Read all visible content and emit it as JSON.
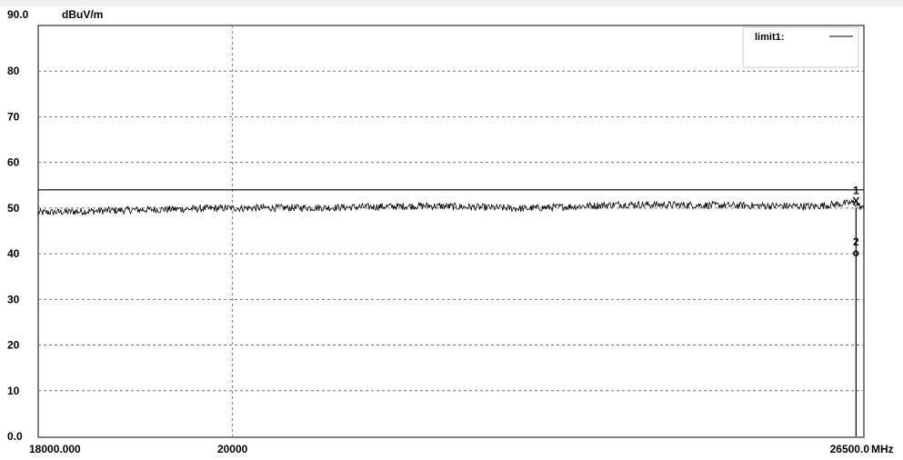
{
  "chart_data": {
    "type": "line",
    "y_unit": "dBuV/m",
    "x_unit": "MHz",
    "ylim": [
      0,
      90
    ],
    "xlim": [
      18000,
      26500
    ],
    "y_top_label": "90.0",
    "y_ticks": [
      {
        "value": 80,
        "label": "80"
      },
      {
        "value": 70,
        "label": "70"
      },
      {
        "value": 60,
        "label": "60"
      },
      {
        "value": 50,
        "label": "50"
      },
      {
        "value": 40,
        "label": "40"
      },
      {
        "value": 30,
        "label": "30"
      },
      {
        "value": 20,
        "label": "20"
      },
      {
        "value": 10,
        "label": "10"
      },
      {
        "value": 0,
        "label": "0.0"
      }
    ],
    "x_ticks": [
      {
        "value": 18000,
        "label": "18000.000"
      },
      {
        "value": 20000,
        "label": "20000"
      },
      {
        "value": 26500,
        "label": "26500.0"
      }
    ],
    "grid": true,
    "legend": {
      "label": "limit1:",
      "position": "top-right"
    },
    "limit_line": {
      "name": "limit1",
      "value": 54
    },
    "series": [
      {
        "type": "noise-trace",
        "points": [
          {
            "x": 18000,
            "y": 49
          },
          {
            "x": 19000,
            "y": 49.6
          },
          {
            "x": 20000,
            "y": 50
          },
          {
            "x": 21000,
            "y": 50.1
          },
          {
            "x": 22000,
            "y": 50.5
          },
          {
            "x": 23000,
            "y": 49.9
          },
          {
            "x": 24000,
            "y": 50.8
          },
          {
            "x": 25000,
            "y": 50.6
          },
          {
            "x": 26000,
            "y": 50.4
          },
          {
            "x": 26400,
            "y": 51.2
          },
          {
            "x": 26500,
            "y": 49.8
          }
        ],
        "noise_amplitude": 0.8
      }
    ],
    "markers": [
      {
        "label": "1",
        "x": 26419,
        "y": 51.3,
        "symbol": "X"
      },
      {
        "label": "2",
        "x": 26419,
        "y": 40,
        "symbol": "o"
      }
    ],
    "marker_line_x": 26419
  }
}
